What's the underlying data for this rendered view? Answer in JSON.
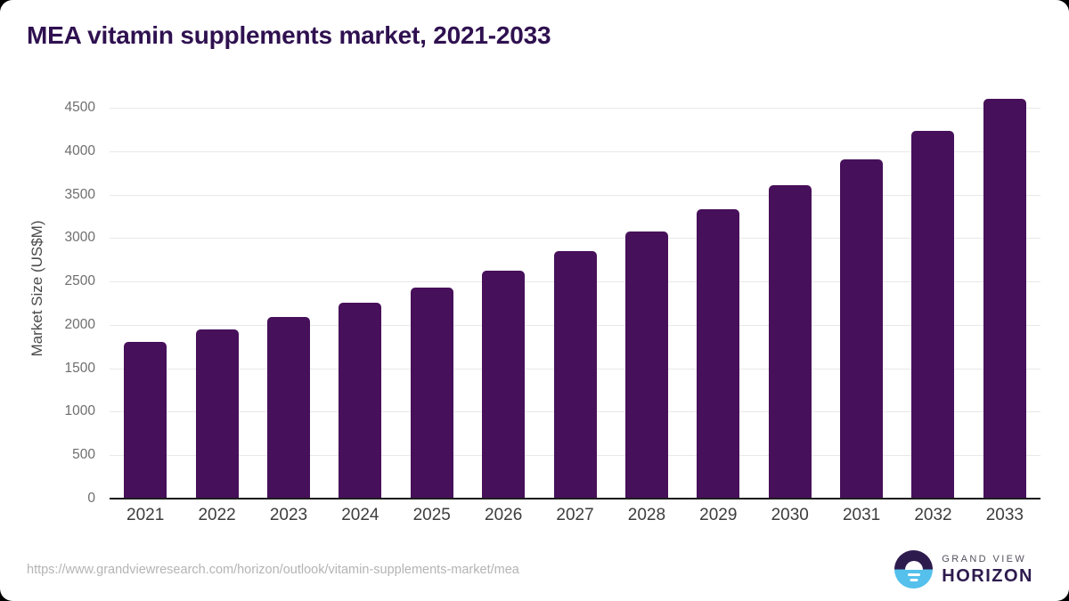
{
  "header": {
    "title": "MEA vitamin supplements market, 2021-2033"
  },
  "chart_data": {
    "type": "bar",
    "title": "MEA vitamin supplements market, 2021-2033",
    "categories": [
      "2021",
      "2022",
      "2023",
      "2024",
      "2025",
      "2026",
      "2027",
      "2028",
      "2029",
      "2030",
      "2031",
      "2032",
      "2033"
    ],
    "values": [
      1800,
      1950,
      2090,
      2250,
      2430,
      2620,
      2850,
      3080,
      3330,
      3610,
      3910,
      4230,
      4600
    ],
    "xlabel": "",
    "ylabel": "Market Size (US$M)",
    "ylim": [
      0,
      4500
    ],
    "yticks": [
      0,
      500,
      1000,
      1500,
      2000,
      2500,
      3000,
      3500,
      4000,
      4500
    ],
    "grid": true,
    "legend": "none",
    "bar_color": "#47105a"
  },
  "footer": {
    "source_url": "https://www.grandviewresearch.com/horizon/outlook/vitamin-supplements-market/mea",
    "logo": {
      "top": "GRAND VIEW",
      "bottom": "HORIZON"
    }
  },
  "colors": {
    "bar": "#47105a",
    "title_text": "#2f1150",
    "logo_purple": "#2d1b4e",
    "logo_blue": "#54c0eb",
    "gridline": "#e8e8e8",
    "axis_line": "#1c1c1c",
    "y_tick_text": "#6e6e6e",
    "x_tick_text": "#3d3d3d",
    "url_text": "#b4b4b4"
  }
}
